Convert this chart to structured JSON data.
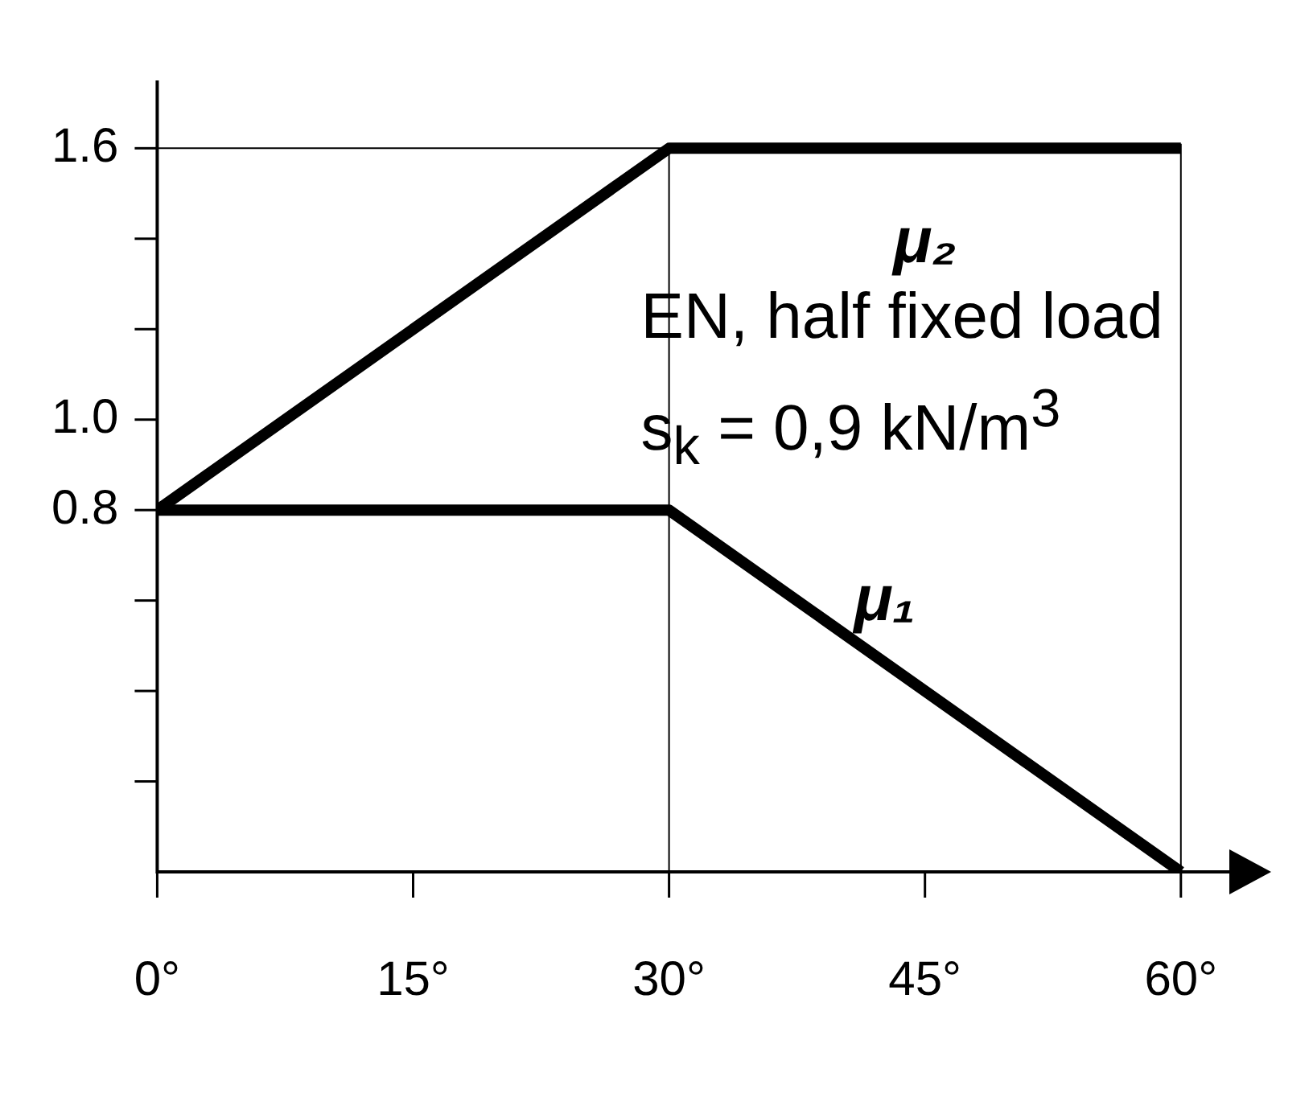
{
  "chart_data": {
    "type": "line",
    "x": [
      0,
      30,
      60
    ],
    "series": [
      {
        "name": "μ₁",
        "color": "#000000",
        "values": [
          0.8,
          0.8,
          0
        ]
      },
      {
        "name": "μ₂",
        "color": "#000000",
        "values": [
          0.8,
          1.6,
          1.6
        ]
      }
    ],
    "xlim": [
      0,
      63
    ],
    "xticks": [
      {
        "value": 0,
        "label": "0°"
      },
      {
        "value": 15,
        "label": "15°"
      },
      {
        "value": 30,
        "label": "30°"
      },
      {
        "value": 45,
        "label": "45°"
      },
      {
        "value": 60,
        "label": "60°"
      }
    ],
    "ylim": [
      0,
      1.75
    ],
    "yticks": [
      {
        "value": 0.2,
        "label": null
      },
      {
        "value": 0.4,
        "label": null
      },
      {
        "value": 0.6,
        "label": null
      },
      0.8,
      {
        "value": 1.0,
        "label": "1.0"
      },
      {
        "value": 1.2,
        "label": null
      },
      {
        "value": 1.4,
        "label": null
      },
      1.6
    ],
    "ref_lines": [
      {
        "axis": "x",
        "value": 30,
        "label": null
      },
      {
        "axis": "x",
        "value": 60,
        "label": null
      },
      {
        "axis": "y",
        "value": 1.6,
        "label": null
      }
    ],
    "annotations": [
      "EN, half fixed load",
      "s$_{k}$ = 0,9 kN/m$^{3}$"
    ],
    "grid": false,
    "legend": false,
    "marker": "none",
    "line_style": "solid"
  }
}
